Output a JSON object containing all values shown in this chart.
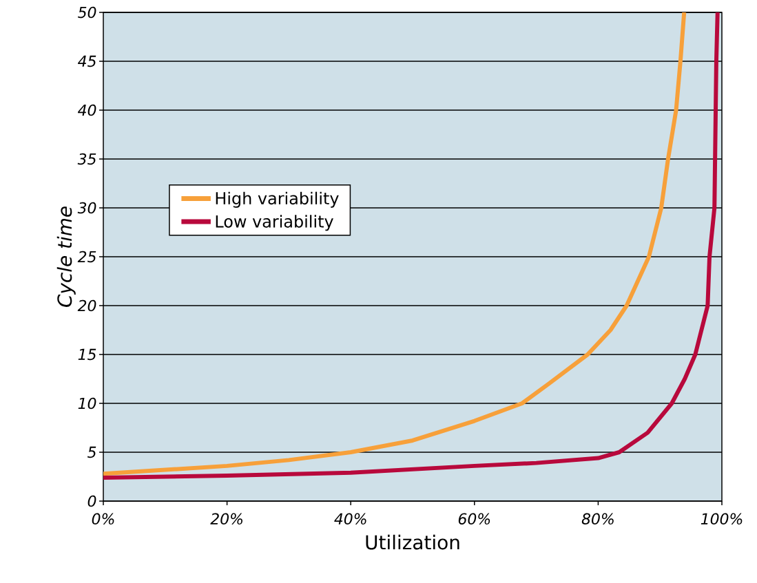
{
  "chart_data": {
    "type": "line",
    "xlabel": "Utilization",
    "ylabel": "Cycle time",
    "xlim": [
      0,
      100
    ],
    "ylim": [
      0,
      50
    ],
    "xticks": [
      {
        "value": 0,
        "label": "0%"
      },
      {
        "value": 20,
        "label": "20%"
      },
      {
        "value": 40,
        "label": "40%"
      },
      {
        "value": 60,
        "label": "60%"
      },
      {
        "value": 80,
        "label": "80%"
      },
      {
        "value": 100,
        "label": "100%"
      }
    ],
    "yticks": [
      0,
      5,
      10,
      15,
      20,
      25,
      30,
      35,
      40,
      45,
      50
    ],
    "grid": "y",
    "legend": "left",
    "marker": "none",
    "line_style": "solid",
    "series": [
      {
        "name": "High variability",
        "color": "#f7a03a",
        "x": [
          0,
          10,
          20,
          30,
          40,
          50,
          60,
          67.7,
          72,
          78.3,
          82,
          84.6,
          88.2,
          90.2,
          91.3,
          92.6,
          93.3,
          93.9
        ],
        "values": [
          2.8,
          3.2,
          3.6,
          4.2,
          5,
          6.2,
          8.2,
          10,
          12,
          15,
          17.5,
          20,
          25,
          30,
          35,
          40,
          45,
          50
        ]
      },
      {
        "name": "Low variability",
        "color": "#b8093c",
        "x": [
          0,
          20,
          40,
          60,
          70,
          80,
          83.4,
          88,
          91.9,
          94,
          95.7,
          97.7,
          98,
          98.8,
          99.1,
          99.3
        ],
        "values": [
          2.4,
          2.6,
          2.9,
          3.6,
          3.9,
          4.4,
          5,
          7,
          10,
          12.5,
          15,
          20,
          25,
          30,
          45,
          50
        ]
      }
    ]
  }
}
